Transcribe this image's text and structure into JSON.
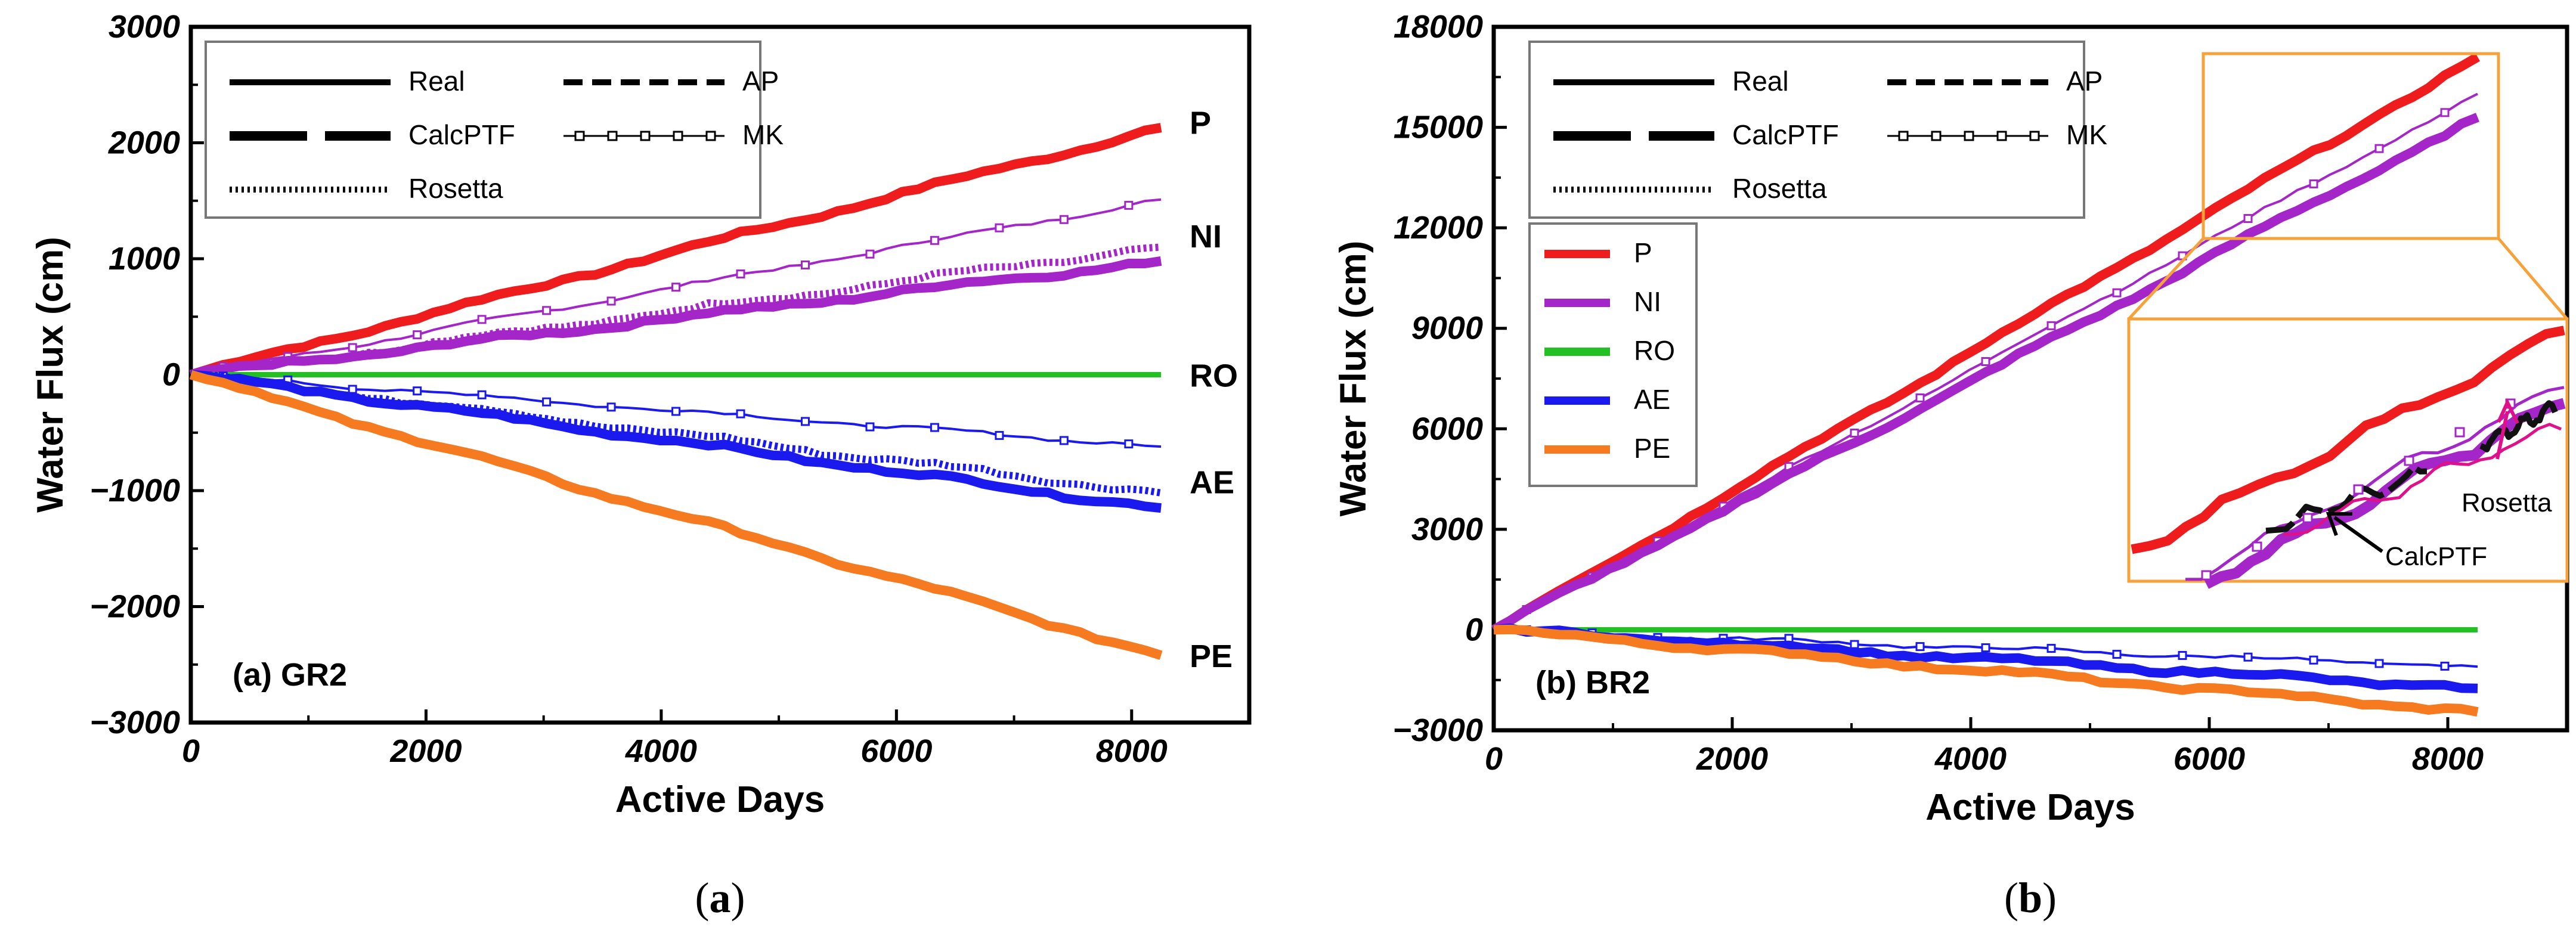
{
  "figure": {
    "legend_styles": [
      {
        "name": "Real",
        "dash": "solid"
      },
      {
        "name": "CalcPTF",
        "dash": "long-dash"
      },
      {
        "name": "Rosetta",
        "dash": "dotted"
      },
      {
        "name": "AP",
        "dash": "short-dash"
      },
      {
        "name": "MK",
        "dash": "square-markers"
      }
    ],
    "legend_flux": [
      {
        "name": "P",
        "color": "#ee1c1c"
      },
      {
        "name": "NI",
        "color": "#a526c8"
      },
      {
        "name": "RO",
        "color": "#22c022"
      },
      {
        "name": "AE",
        "color": "#1a1aee"
      },
      {
        "name": "PE",
        "color": "#f57a20"
      }
    ]
  },
  "chart_data": [
    {
      "type": "line",
      "panel_label": "(a) GR2",
      "caption_pre": "(",
      "caption_letter": "a",
      "caption_post": ")",
      "xlabel": "Active Days",
      "ylabel": "Water Flux (cm)",
      "xlim": [
        0,
        9000
      ],
      "ylim": [
        -3000,
        3000
      ],
      "xticks": [
        0,
        2000,
        4000,
        6000,
        8000
      ],
      "yticks": [
        -3000,
        -2000,
        -1000,
        0,
        1000,
        2000,
        3000
      ],
      "ytick_labels": [
        "−3000",
        "−2000",
        "−1000",
        "0",
        "1000",
        "2000",
        "3000"
      ],
      "series": [
        {
          "name": "P",
          "model": "Real",
          "color": "#ee1c1c",
          "x_end": 8250,
          "y_end": 2130
        },
        {
          "name": "NI",
          "model": "MK",
          "color": "#a526c8",
          "x_end": 8250,
          "y_end": 1510
        },
        {
          "name": "NI",
          "model": "Rosetta",
          "color": "#a526c8",
          "x_end": 8250,
          "y_end": 1100
        },
        {
          "name": "NI",
          "model": "Real",
          "color": "#a526c8",
          "x_end": 8250,
          "y_end": 980
        },
        {
          "name": "RO",
          "model": "Real",
          "color": "#22c022",
          "x_end": 8250,
          "y_end": 0
        },
        {
          "name": "AE",
          "model": "MK",
          "color": "#1a1aee",
          "x_end": 8250,
          "y_end": -620
        },
        {
          "name": "AE",
          "model": "Rosetta",
          "color": "#1a1aee",
          "x_end": 8250,
          "y_end": -1020
        },
        {
          "name": "AE",
          "model": "Real",
          "color": "#1a1aee",
          "x_end": 8250,
          "y_end": -1150
        },
        {
          "name": "PE",
          "model": "Real",
          "color": "#f57a20",
          "x_end": 8250,
          "y_end": -2420
        }
      ],
      "end_labels": [
        {
          "text": "P",
          "y": 2180
        },
        {
          "text": "NI",
          "y": 1200
        },
        {
          "text": "RO",
          "y": 0
        },
        {
          "text": "AE",
          "y": -920
        },
        {
          "text": "PE",
          "y": -2420
        }
      ]
    },
    {
      "type": "line",
      "panel_label": "(b) BR2",
      "caption_pre": "(",
      "caption_letter": "b",
      "caption_post": ")",
      "xlabel": "Active Days",
      "ylabel": "Water Flux (cm)",
      "xlim": [
        0,
        9000
      ],
      "ylim": [
        -3000,
        18000
      ],
      "xticks": [
        0,
        2000,
        4000,
        6000,
        8000
      ],
      "yticks": [
        -3000,
        0,
        3000,
        6000,
        9000,
        12000,
        15000,
        18000
      ],
      "ytick_labels": [
        "−3000",
        "0",
        "3000",
        "6000",
        "9000",
        "12000",
        "15000",
        "18000"
      ],
      "series": [
        {
          "name": "P",
          "model": "Real",
          "color": "#ee1c1c",
          "x_end": 8250,
          "y_end": 17100
        },
        {
          "name": "NI",
          "model": "MK",
          "color": "#a526c8",
          "x_end": 8250,
          "y_end": 16000
        },
        {
          "name": "NI",
          "model": "Real",
          "color": "#a526c8",
          "x_end": 8250,
          "y_end": 15300
        },
        {
          "name": "RO",
          "model": "Real",
          "color": "#22c022",
          "x_end": 8250,
          "y_end": 0
        },
        {
          "name": "AE",
          "model": "MK",
          "color": "#1a1aee",
          "x_end": 8250,
          "y_end": -1100
        },
        {
          "name": "AE",
          "model": "Real",
          "color": "#1a1aee",
          "x_end": 8250,
          "y_end": -1750
        },
        {
          "name": "PE",
          "model": "Real",
          "color": "#f57a20",
          "x_end": 8250,
          "y_end": -2450
        }
      ],
      "inset_annotations": [
        "Rosetta",
        "CalcPTF"
      ]
    }
  ]
}
